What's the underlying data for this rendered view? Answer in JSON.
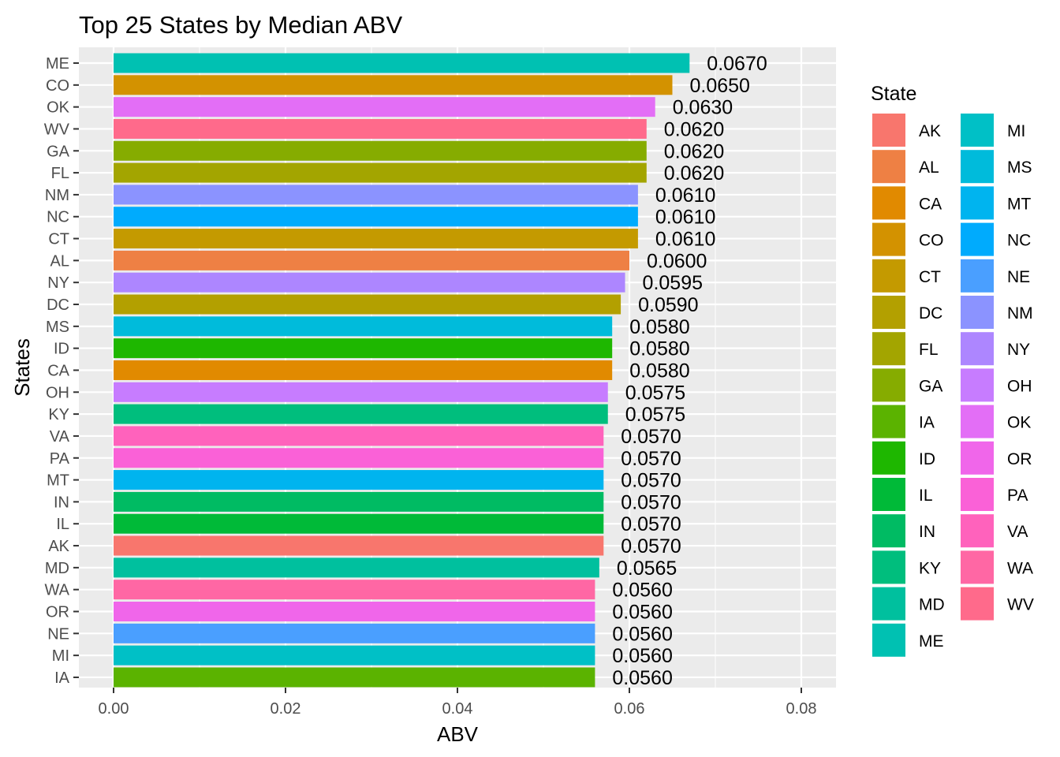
{
  "chart_data": {
    "type": "bar",
    "orientation": "horizontal",
    "title": "Top 25 States by Median ABV",
    "xlabel": "ABV",
    "ylabel": "States",
    "xlim": [
      0,
      0.082
    ],
    "x_ticks": [
      "0.00",
      "0.02",
      "0.04",
      "0.06",
      "0.08"
    ],
    "x_tick_values": [
      0,
      0.02,
      0.04,
      0.06,
      0.08
    ],
    "grid": true,
    "legend_position": "right",
    "categories": [
      "ME",
      "CO",
      "OK",
      "WV",
      "GA",
      "FL",
      "NM",
      "NC",
      "CT",
      "AL",
      "NY",
      "DC",
      "MS",
      "ID",
      "CA",
      "OH",
      "KY",
      "VA",
      "PA",
      "MT",
      "IN",
      "IL",
      "AK",
      "MD",
      "WA",
      "OR",
      "NE",
      "MI",
      "IA"
    ],
    "values": [
      0.067,
      0.065,
      0.063,
      0.062,
      0.062,
      0.062,
      0.061,
      0.061,
      0.061,
      0.06,
      0.0595,
      0.059,
      0.058,
      0.058,
      0.058,
      0.0575,
      0.0575,
      0.057,
      0.057,
      0.057,
      0.057,
      0.057,
      0.057,
      0.0565,
      0.056,
      0.056,
      0.056,
      0.056,
      0.056
    ],
    "value_labels": [
      "0.0670",
      "0.0650",
      "0.0630",
      "0.0620",
      "0.0620",
      "0.0620",
      "0.0610",
      "0.0610",
      "0.0610",
      "0.0600",
      "0.0595",
      "0.0590",
      "0.0580",
      "0.0580",
      "0.0580",
      "0.0575",
      "0.0575",
      "0.0570",
      "0.0570",
      "0.0570",
      "0.0570",
      "0.0570",
      "0.0570",
      "0.0565",
      "0.0560",
      "0.0560",
      "0.0560",
      "0.0560",
      "0.0560"
    ],
    "legend": {
      "title": "State",
      "items": [
        {
          "label": "AK",
          "color": "#F8766D"
        },
        {
          "label": "AL",
          "color": "#EE8044"
        },
        {
          "label": "CA",
          "color": "#E18A00"
        },
        {
          "label": "CO",
          "color": "#D39200"
        },
        {
          "label": "CT",
          "color": "#C49A00"
        },
        {
          "label": "DC",
          "color": "#B3A000"
        },
        {
          "label": "FL",
          "color": "#A3A500"
        },
        {
          "label": "GA",
          "color": "#86AC00"
        },
        {
          "label": "IA",
          "color": "#5BB300"
        },
        {
          "label": "ID",
          "color": "#1EB700"
        },
        {
          "label": "IL",
          "color": "#00BA38"
        },
        {
          "label": "IN",
          "color": "#00BB63"
        },
        {
          "label": "KY",
          "color": "#00BE7D"
        },
        {
          "label": "MD",
          "color": "#00C09E"
        },
        {
          "label": "ME",
          "color": "#00C1B2"
        },
        {
          "label": "MI",
          "color": "#00C0C6"
        },
        {
          "label": "MS",
          "color": "#00BBDB"
        },
        {
          "label": "MT",
          "color": "#00B4EF"
        },
        {
          "label": "NC",
          "color": "#00ABFD"
        },
        {
          "label": "NE",
          "color": "#4A9FFF"
        },
        {
          "label": "NM",
          "color": "#8B93FF"
        },
        {
          "label": "NY",
          "color": "#AD86FF"
        },
        {
          "label": "OH",
          "color": "#C77CFF"
        },
        {
          "label": "OK",
          "color": "#E36EF6"
        },
        {
          "label": "OR",
          "color": "#F066EA"
        },
        {
          "label": "PA",
          "color": "#FA61D7"
        },
        {
          "label": "VA",
          "color": "#FF62BC"
        },
        {
          "label": "WA",
          "color": "#FF67A4"
        },
        {
          "label": "WV",
          "color": "#FF6A8B"
        }
      ]
    }
  }
}
